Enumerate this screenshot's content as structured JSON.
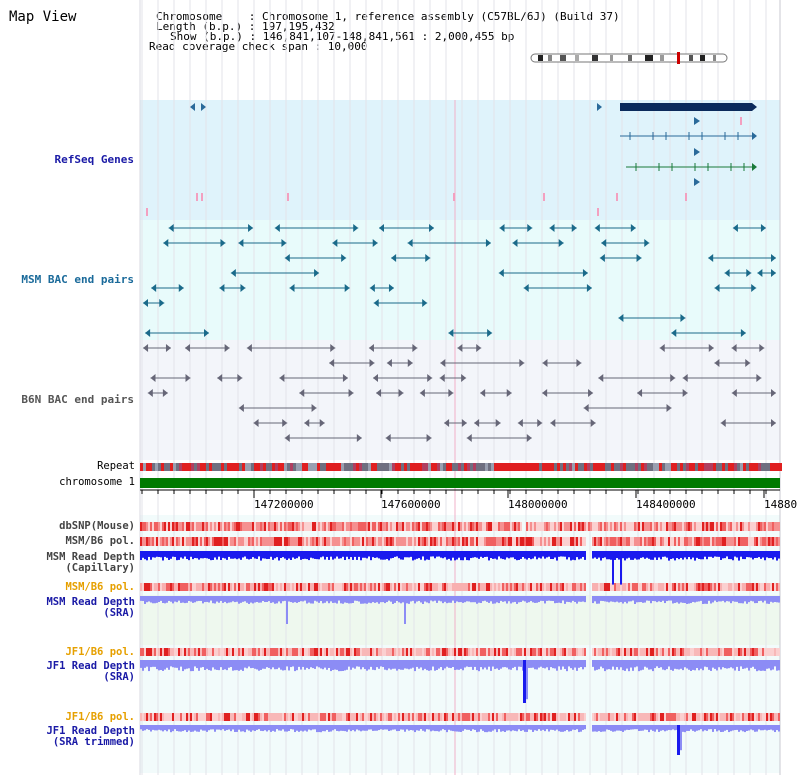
{
  "view": {
    "title": "Map View"
  },
  "info": {
    "chromosome_line": "Chromosome    : Chromosome 1, reference assembly (C57BL/6J) (Build 37)",
    "length_line": "Length (b.p.) : 197,195,432",
    "show_line": "Show (b.p.) : 146,841,107-148,841,561 : 2,000,455 bp",
    "coverage_line": "Read coverage check span : 10,000"
  },
  "lanes": {
    "refseq": "RefSeq Genes",
    "msm_bac": "MSM BAC end pairs",
    "b6n_bac": "B6N BAC end pairs"
  },
  "tracks": {
    "repeat": "Repeat",
    "chromosome": "chromosome 1",
    "dbsnp": "dbSNP(Mouse)",
    "msm_b6_pol_1": "MSM/B6 pol.",
    "msm_depth_cap": "MSM Read Depth\n(Capillary)",
    "msm_b6_pol_2": "MSM/B6 pol.",
    "msm_depth_sra": "MSM Read Depth\n(SRA)",
    "jf1_b6_pol_1": "JF1/B6 pol.",
    "jf1_depth_sra": "JF1 Read Depth\n(SRA)",
    "jf1_b6_pol_2": "JF1/B6 pol.",
    "jf1_depth_trim": "JF1 Read Depth\n(SRA trimmed)"
  },
  "ruler": {
    "ticks": [
      "147200000",
      "147600000",
      "148000000",
      "148400000",
      "14880"
    ]
  },
  "colors": {
    "refseq_bg": "#dff3fb",
    "msm_bg": "#e8fbfb",
    "b6n_bg": "#f3f5fa",
    "lane_label_blue": "#1a1aa6",
    "lane_label_orange": "#e6a000",
    "chromosome_green": "#007a00",
    "depth_blue": "#1a1aee",
    "depth_light": "#8c8cf5"
  }
}
